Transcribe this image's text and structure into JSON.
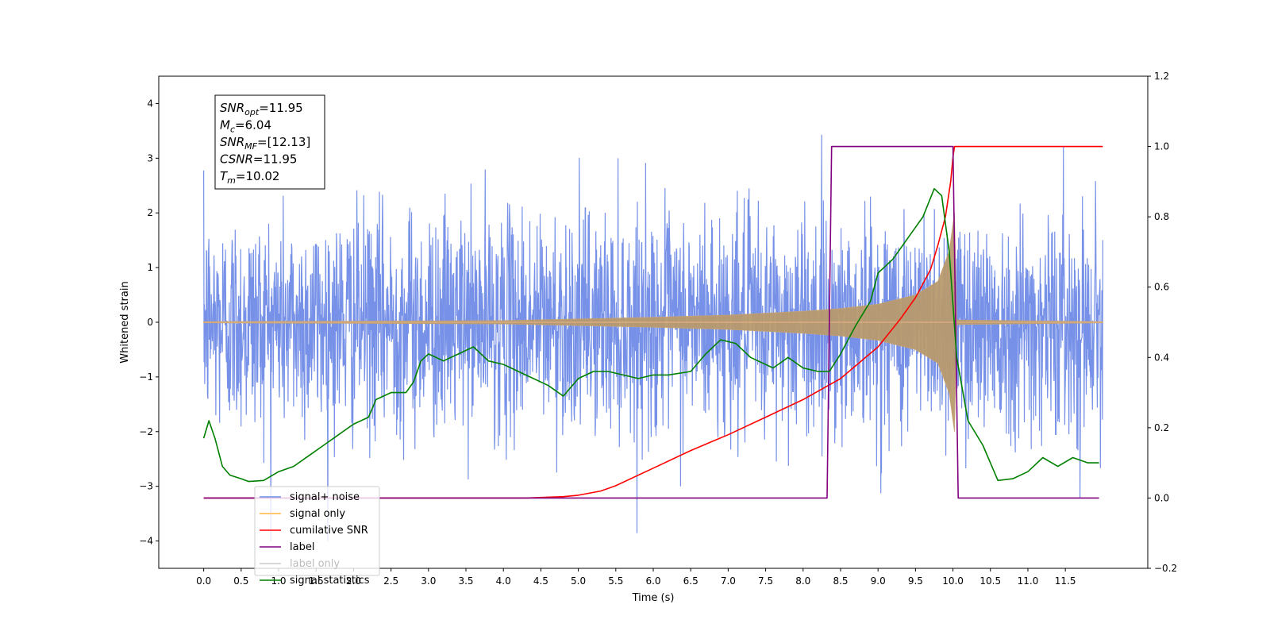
{
  "chart_data": {
    "type": "line",
    "title": "",
    "xlabel": "Time (s)",
    "ylabel": "Whitened strain",
    "y2label": "",
    "xlim": [
      -0.6,
      12.6
    ],
    "ylim": [
      -4.5,
      4.5
    ],
    "y2lim": [
      -0.2,
      1.2
    ],
    "x_ticks": [
      0.0,
      0.5,
      1.0,
      1.5,
      2.0,
      2.5,
      3.0,
      3.5,
      4.0,
      4.5,
      5.0,
      5.5,
      6.0,
      6.5,
      7.0,
      7.5,
      8.0,
      8.5,
      9.0,
      9.5,
      10.0,
      10.5,
      11.0,
      11.5
    ],
    "x_tick_labels": [
      "0.0",
      "0.5",
      "1.0",
      "1.5",
      "2.0",
      "2.5",
      "3.0",
      "3.5",
      "4.0",
      "4.5",
      "5.0",
      "5.5",
      "6.0",
      "6.5",
      "7.0",
      "7.5",
      "8.0",
      "8.5",
      "9.0",
      "9.5",
      "10.0",
      "10.5",
      "11.0",
      "11.5"
    ],
    "y_ticks": [
      -4,
      -3,
      -2,
      -1,
      0,
      1,
      2,
      3,
      4
    ],
    "y_tick_labels": [
      "−4",
      "−3",
      "−2",
      "−1",
      "0",
      "1",
      "2",
      "3",
      "4"
    ],
    "y2_ticks": [
      -0.2,
      0.0,
      0.2,
      0.4,
      0.6,
      0.8,
      1.0,
      1.2
    ],
    "y2_tick_labels": [
      "−0.2",
      "0.0",
      "0.2",
      "0.4",
      "0.6",
      "0.8",
      "1.0",
      "1.2"
    ],
    "grid": false,
    "legend_position": "lower-left",
    "annotation": {
      "lines": [
        {
          "sym": "SNR",
          "sub": "opt",
          "value": "=11.95"
        },
        {
          "sym": "M",
          "sub": "c",
          "value": "=6.04"
        },
        {
          "sym": "SNR",
          "sub": "MF",
          "value": "=[12.13]"
        },
        {
          "sym": "CSNR",
          "sub": "",
          "value": "=11.95"
        },
        {
          "sym": "T",
          "sub": "m",
          "value": "=10.02"
        }
      ]
    },
    "series": [
      {
        "name": "signal+ noise",
        "axis": "left",
        "color": "#6f8be6",
        "description": "dense whitened noise, approx. gaussian, sigma ~1.0, peaks to about +4.1 and -4.0, spanning 0.0 to 12.0 s",
        "x_range": [
          0.0,
          12.0
        ],
        "sigma": 1.0
      },
      {
        "name": "signal only",
        "axis": "left",
        "color": "#ffb347",
        "description": "chirp signal with growing amplitude, merging at ~10.02 s, near zero after",
        "x_range": [
          0.0,
          12.0
        ],
        "merger_time": 10.02,
        "envelope": [
          {
            "x": 0.0,
            "y": 0.01
          },
          {
            "x": 4.0,
            "y": 0.03
          },
          {
            "x": 5.0,
            "y": 0.06
          },
          {
            "x": 6.0,
            "y": 0.09
          },
          {
            "x": 7.0,
            "y": 0.13
          },
          {
            "x": 8.0,
            "y": 0.2
          },
          {
            "x": 8.5,
            "y": 0.25
          },
          {
            "x": 9.0,
            "y": 0.33
          },
          {
            "x": 9.5,
            "y": 0.5
          },
          {
            "x": 9.8,
            "y": 0.75
          },
          {
            "x": 9.95,
            "y": 1.3
          },
          {
            "x": 10.02,
            "y": 2.0
          },
          {
            "x": 10.05,
            "y": 0.04
          },
          {
            "x": 12.0,
            "y": 0.01
          }
        ]
      },
      {
        "name": "cumilative SNR",
        "axis": "right",
        "color": "#ff0000",
        "points": [
          {
            "x": 0.0,
            "y": 0.0
          },
          {
            "x": 4.3,
            "y": 0.0
          },
          {
            "x": 4.8,
            "y": 0.004
          },
          {
            "x": 5.0,
            "y": 0.008
          },
          {
            "x": 5.3,
            "y": 0.02
          },
          {
            "x": 5.5,
            "y": 0.035
          },
          {
            "x": 6.0,
            "y": 0.085
          },
          {
            "x": 6.5,
            "y": 0.135
          },
          {
            "x": 7.0,
            "y": 0.18
          },
          {
            "x": 7.5,
            "y": 0.23
          },
          {
            "x": 8.0,
            "y": 0.28
          },
          {
            "x": 8.5,
            "y": 0.34
          },
          {
            "x": 9.0,
            "y": 0.43
          },
          {
            "x": 9.3,
            "y": 0.51
          },
          {
            "x": 9.5,
            "y": 0.57
          },
          {
            "x": 9.7,
            "y": 0.65
          },
          {
            "x": 9.8,
            "y": 0.72
          },
          {
            "x": 9.9,
            "y": 0.8
          },
          {
            "x": 9.97,
            "y": 0.9
          },
          {
            "x": 10.0,
            "y": 0.97
          },
          {
            "x": 10.02,
            "y": 1.0
          },
          {
            "x": 12.0,
            "y": 1.0
          }
        ]
      },
      {
        "name": "label",
        "axis": "right",
        "color": "#800080",
        "points": [
          {
            "x": 0.0,
            "y": 0.0
          },
          {
            "x": 8.32,
            "y": 0.0
          },
          {
            "x": 8.38,
            "y": 1.0
          },
          {
            "x": 10.0,
            "y": 1.0
          },
          {
            "x": 10.07,
            "y": 0.0
          },
          {
            "x": 11.95,
            "y": 0.0
          }
        ]
      },
      {
        "name": "label only",
        "axis": "right",
        "color": "#c8c8c8",
        "legend_only": true,
        "points": []
      },
      {
        "name": "signal statistics",
        "axis": "right",
        "color": "#008000",
        "points": [
          {
            "x": 0.0,
            "y": 0.17
          },
          {
            "x": 0.07,
            "y": 0.22
          },
          {
            "x": 0.15,
            "y": 0.17
          },
          {
            "x": 0.25,
            "y": 0.09
          },
          {
            "x": 0.35,
            "y": 0.065
          },
          {
            "x": 0.5,
            "y": 0.055
          },
          {
            "x": 0.6,
            "y": 0.047
          },
          {
            "x": 0.8,
            "y": 0.05
          },
          {
            "x": 1.0,
            "y": 0.075
          },
          {
            "x": 1.2,
            "y": 0.09
          },
          {
            "x": 1.4,
            "y": 0.12
          },
          {
            "x": 1.6,
            "y": 0.15
          },
          {
            "x": 1.8,
            "y": 0.18
          },
          {
            "x": 2.0,
            "y": 0.21
          },
          {
            "x": 2.2,
            "y": 0.23
          },
          {
            "x": 2.3,
            "y": 0.28
          },
          {
            "x": 2.5,
            "y": 0.3
          },
          {
            "x": 2.7,
            "y": 0.3
          },
          {
            "x": 2.8,
            "y": 0.33
          },
          {
            "x": 2.9,
            "y": 0.39
          },
          {
            "x": 3.0,
            "y": 0.41
          },
          {
            "x": 3.2,
            "y": 0.39
          },
          {
            "x": 3.4,
            "y": 0.41
          },
          {
            "x": 3.6,
            "y": 0.43
          },
          {
            "x": 3.8,
            "y": 0.39
          },
          {
            "x": 4.0,
            "y": 0.38
          },
          {
            "x": 4.2,
            "y": 0.36
          },
          {
            "x": 4.4,
            "y": 0.34
          },
          {
            "x": 4.6,
            "y": 0.32
          },
          {
            "x": 4.8,
            "y": 0.29
          },
          {
            "x": 5.0,
            "y": 0.34
          },
          {
            "x": 5.2,
            "y": 0.36
          },
          {
            "x": 5.4,
            "y": 0.36
          },
          {
            "x": 5.6,
            "y": 0.35
          },
          {
            "x": 5.8,
            "y": 0.34
          },
          {
            "x": 6.0,
            "y": 0.35
          },
          {
            "x": 6.2,
            "y": 0.35
          },
          {
            "x": 6.5,
            "y": 0.36
          },
          {
            "x": 6.7,
            "y": 0.41
          },
          {
            "x": 6.9,
            "y": 0.45
          },
          {
            "x": 7.1,
            "y": 0.44
          },
          {
            "x": 7.3,
            "y": 0.4
          },
          {
            "x": 7.6,
            "y": 0.37
          },
          {
            "x": 7.8,
            "y": 0.4
          },
          {
            "x": 8.0,
            "y": 0.37
          },
          {
            "x": 8.2,
            "y": 0.36
          },
          {
            "x": 8.35,
            "y": 0.36
          },
          {
            "x": 8.5,
            "y": 0.41
          },
          {
            "x": 8.7,
            "y": 0.49
          },
          {
            "x": 8.9,
            "y": 0.56
          },
          {
            "x": 9.0,
            "y": 0.64
          },
          {
            "x": 9.2,
            "y": 0.68
          },
          {
            "x": 9.4,
            "y": 0.74
          },
          {
            "x": 9.6,
            "y": 0.8
          },
          {
            "x": 9.75,
            "y": 0.88
          },
          {
            "x": 9.85,
            "y": 0.86
          },
          {
            "x": 9.95,
            "y": 0.7
          },
          {
            "x": 10.05,
            "y": 0.4
          },
          {
            "x": 10.2,
            "y": 0.22
          },
          {
            "x": 10.4,
            "y": 0.15
          },
          {
            "x": 10.6,
            "y": 0.05
          },
          {
            "x": 10.8,
            "y": 0.055
          },
          {
            "x": 11.0,
            "y": 0.075
          },
          {
            "x": 11.2,
            "y": 0.115
          },
          {
            "x": 11.4,
            "y": 0.09
          },
          {
            "x": 11.6,
            "y": 0.115
          },
          {
            "x": 11.8,
            "y": 0.1
          },
          {
            "x": 11.95,
            "y": 0.1
          }
        ]
      }
    ]
  }
}
